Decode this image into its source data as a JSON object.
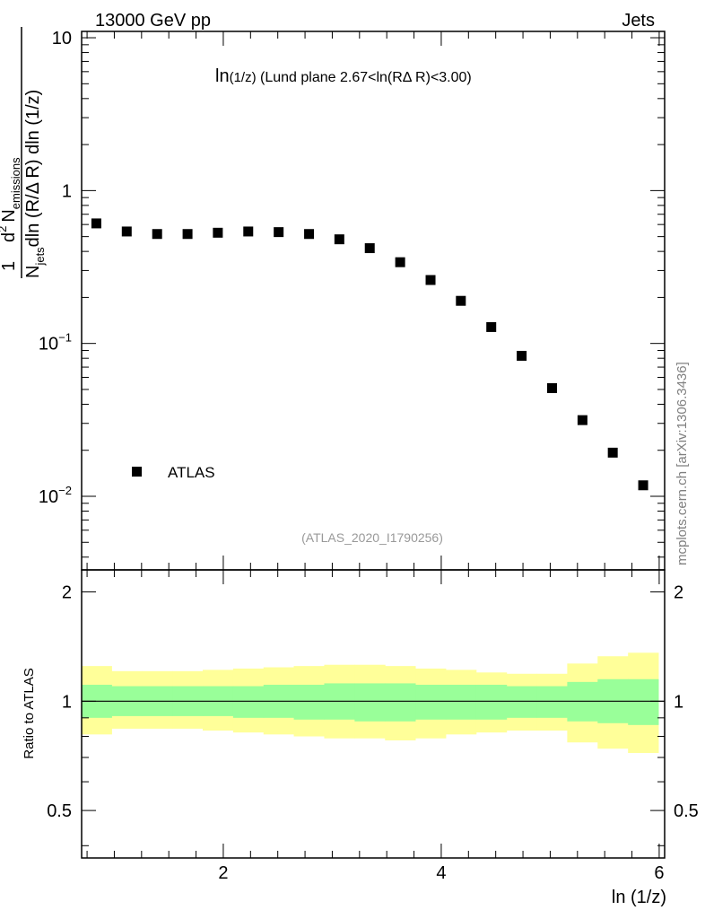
{
  "header": {
    "left_label": "13000 GeV pp",
    "right_label": "Jets",
    "side_label": "mcplots.cern.ch [arXiv:1306.3436]"
  },
  "chart_data": [
    {
      "type": "scatter",
      "title": {
        "main": "ln",
        "sub": "(1/z)",
        "rest": " (Lund plane 2.67<ln(RΔ R)<3.00)"
      },
      "ylabel": {
        "prefix": "1",
        "d2": "d",
        "d2_exp": "2",
        "n_em": "N",
        "n_em_sub": "emissions",
        "den_left": "N",
        "den_left_sub": "jets",
        "den_right": "dln (R/Δ R) dln (1/z)"
      },
      "y_scale": "log",
      "ylim": [
        0.0033,
        11.0
      ],
      "xlim": [
        0.7,
        6.05
      ],
      "ytick_labels": [
        {
          "value": 10,
          "base": "10",
          "exp": ""
        },
        {
          "value": 1,
          "base": "1",
          "exp": ""
        },
        {
          "value": 0.1,
          "base": "10",
          "exp": "−1"
        },
        {
          "value": 0.01,
          "base": "10",
          "exp": "−2"
        }
      ],
      "legend": {
        "label": "ATLAS",
        "position": "bottom-left"
      },
      "analysis_label": "(ATLAS_2020_I1790256)",
      "series": [
        {
          "name": "ATLAS",
          "x": [
            0.835,
            1.114,
            1.393,
            1.672,
            1.95,
            2.229,
            2.508,
            2.787,
            3.065,
            3.344,
            3.623,
            3.902,
            4.18,
            4.459,
            4.738,
            5.017,
            5.296,
            5.574,
            5.853
          ],
          "y": [
            0.61,
            0.54,
            0.52,
            0.52,
            0.53,
            0.54,
            0.535,
            0.52,
            0.48,
            0.42,
            0.34,
            0.26,
            0.19,
            0.128,
            0.083,
            0.051,
            0.0315,
            0.0193,
            0.0118
          ]
        }
      ]
    },
    {
      "type": "area",
      "ylabel": "Ratio to ATLAS",
      "xlabel": "ln (1/z)",
      "ylim": [
        0.37,
        2.3
      ],
      "xlim": [
        0.7,
        6.05
      ],
      "ytick_labels": [
        {
          "value": 2,
          "label": "2"
        },
        {
          "value": 1,
          "label": "1"
        },
        {
          "value": 0.5,
          "label": "0.5"
        }
      ],
      "xtick_labels": [
        {
          "value": 2,
          "label": "2"
        },
        {
          "value": 4,
          "label": "4"
        },
        {
          "value": 6,
          "label": "6"
        }
      ],
      "reference_line": 1.0,
      "bin_edges": [
        0.696,
        0.975,
        1.254,
        1.532,
        1.811,
        2.09,
        2.369,
        2.647,
        2.926,
        3.205,
        3.484,
        3.762,
        4.041,
        4.32,
        4.599,
        4.878,
        5.156,
        5.435,
        5.714,
        5.992
      ],
      "band_stat": {
        "name": "inner uncertainty",
        "lower": [
          0.9,
          0.91,
          0.91,
          0.91,
          0.91,
          0.9,
          0.9,
          0.89,
          0.89,
          0.88,
          0.88,
          0.89,
          0.89,
          0.89,
          0.9,
          0.9,
          0.88,
          0.87,
          0.86
        ],
        "upper": [
          1.11,
          1.1,
          1.1,
          1.1,
          1.1,
          1.1,
          1.11,
          1.11,
          1.12,
          1.12,
          1.12,
          1.11,
          1.11,
          1.11,
          1.1,
          1.1,
          1.13,
          1.15,
          1.15
        ]
      },
      "band_total": {
        "name": "outer uncertainty",
        "lower": [
          0.81,
          0.84,
          0.84,
          0.84,
          0.83,
          0.82,
          0.81,
          0.8,
          0.79,
          0.79,
          0.78,
          0.79,
          0.81,
          0.82,
          0.83,
          0.83,
          0.77,
          0.74,
          0.72
        ],
        "upper": [
          1.25,
          1.21,
          1.21,
          1.21,
          1.22,
          1.23,
          1.24,
          1.25,
          1.26,
          1.26,
          1.25,
          1.23,
          1.22,
          1.2,
          1.19,
          1.19,
          1.27,
          1.33,
          1.36
        ]
      }
    }
  ],
  "colors": {
    "band_inner": "#99ff99",
    "band_outer": "#ffff99",
    "marker": "#000000",
    "axis": "#000000",
    "side_label": "#808080",
    "analysis_label": "#999999"
  }
}
